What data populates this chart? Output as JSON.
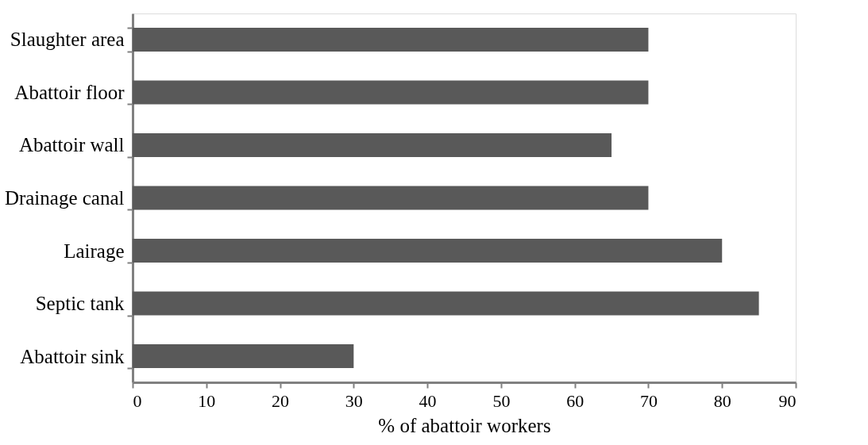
{
  "chart_data": {
    "type": "bar",
    "orientation": "horizontal",
    "xlabel": "% of abattoir workers",
    "categories": [
      "Slaughter area",
      "Abattoir floor",
      "Abattoir  wall",
      "Drainage canal",
      "Lairage",
      "Septic tank",
      "Abattoir sink"
    ],
    "values": [
      70,
      70,
      65,
      70,
      80,
      85,
      30
    ],
    "color": "#595959",
    "xlim": [
      0,
      90
    ],
    "xticks": [
      0,
      10,
      20,
      30,
      40,
      50,
      60,
      70,
      80,
      90
    ],
    "grid": false
  }
}
